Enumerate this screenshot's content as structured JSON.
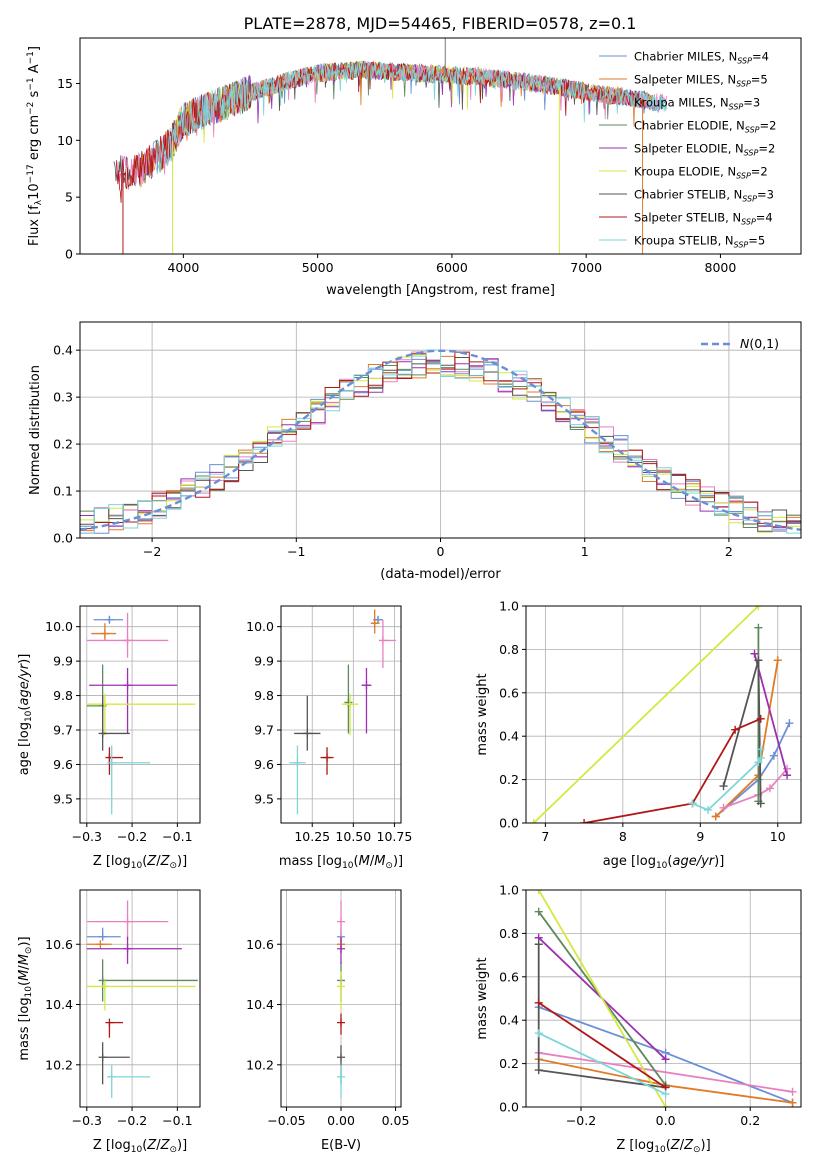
{
  "title": "PLATE=2878, MJD=54465, FIBERID=0578, z=0.1",
  "series_names": [
    "Chabrier MILES, N_SSP=4",
    "Salpeter MILES, N_SSP=5",
    "Kroupa MILES, N_SSP=3",
    "Chabrier ELODIE, N_SSP=2",
    "Salpeter ELODIE, N_SSP=2",
    "Kroupa ELODIE, N_SSP=2",
    "Chabrier STELIB, N_SSP=3",
    "Salpeter STELIB, N_SSP=4",
    "Kroupa STELIB, N_SSP=5"
  ],
  "colors": [
    "#6a8fd8",
    "#e07b28",
    "#e880c0",
    "#5c8a5c",
    "#9b30b0",
    "#d4e842",
    "#555555",
    "#b01818",
    "#7dd6d8"
  ],
  "chart_data": [
    {
      "id": "spectrum",
      "type": "line",
      "xlabel": "wavelength [Angstrom, rest frame]",
      "ylabel": "Flux [f_λ 10^-17 erg cm^-2 s^-1 A^-1]",
      "xlim": [
        3230,
        8600
      ],
      "ylim": [
        0,
        19
      ],
      "xticks": [
        4000,
        5000,
        6000,
        7000,
        8000
      ],
      "yticks": [
        0,
        5,
        10,
        15
      ],
      "legend": [
        {
          "base": "Chabrier MILES, N",
          "sub": "SSP",
          "tail": "=4"
        },
        {
          "base": "Salpeter MILES, N",
          "sub": "SSP",
          "tail": "=5"
        },
        {
          "base": "Kroupa MILES, N",
          "sub": "SSP",
          "tail": "=3"
        },
        {
          "base": "Chabrier ELODIE, N",
          "sub": "SSP",
          "tail": "=2"
        },
        {
          "base": "Salpeter ELODIE, N",
          "sub": "SSP",
          "tail": "=2"
        },
        {
          "base": "Kroupa ELODIE, N",
          "sub": "SSP",
          "tail": "=2"
        },
        {
          "base": "Chabrier STELIB, N",
          "sub": "SSP",
          "tail": "=3"
        },
        {
          "base": "Salpeter STELIB, N",
          "sub": "SSP",
          "tail": "=4"
        },
        {
          "base": "Kroupa STELIB, N",
          "sub": "SSP",
          "tail": "=5"
        }
      ],
      "legend_loc": "right",
      "continuum_x": [
        3500,
        3700,
        3900,
        4000,
        4200,
        4500,
        4800,
        5000,
        5300,
        5600,
        5900,
        6200,
        6500,
        6800,
        7000,
        7200,
        7400,
        7600
      ],
      "continuum_y": [
        7.0,
        7.5,
        9.5,
        11.8,
        12.8,
        14.2,
        15.3,
        15.9,
        16.2,
        16.0,
        15.8,
        15.6,
        15.2,
        14.7,
        14.3,
        13.9,
        13.6,
        13.2
      ]
    },
    {
      "id": "residuals",
      "type": "bar",
      "xlabel": "(data-model)/error",
      "ylabel": "Normed distribution",
      "xlim": [
        -2.5,
        2.5
      ],
      "ylim": [
        0,
        0.46
      ],
      "xticks": [
        -2,
        -1,
        0,
        1,
        2
      ],
      "yticks": [
        0.0,
        0.1,
        0.2,
        0.3,
        0.4
      ],
      "legend_label": "N(0,1)",
      "legend_loc": "top-right",
      "grid": true
    },
    {
      "id": "age_vs_Z",
      "type": "scatter",
      "xlabel": "Z [log10(Z/Z⊙)]",
      "ylabel": "age [log10(age/yr)]",
      "xlim": [
        -0.315,
        -0.05
      ],
      "ylim": [
        9.43,
        10.06
      ],
      "xticks": [
        -0.3,
        -0.2,
        -0.1
      ],
      "yticks": [
        9.5,
        9.6,
        9.7,
        9.8,
        9.9,
        10.0
      ],
      "points": [
        {
          "x": -0.25,
          "y": 10.02,
          "xerr": [
            0.035,
            0.03
          ],
          "yerr": [
            0.01,
            0.01
          ]
        },
        {
          "x": -0.26,
          "y": 9.98,
          "xerr": [
            0.03,
            0.025
          ],
          "yerr": [
            0.02,
            0.03
          ]
        },
        {
          "x": -0.21,
          "y": 9.96,
          "xerr": [
            0.09,
            0.09
          ],
          "yerr": [
            0.05,
            0.08
          ]
        },
        {
          "x": -0.265,
          "y": 9.77,
          "xerr": [
            0.035,
            0.0
          ],
          "yerr": [
            0.09,
            0.12
          ]
        },
        {
          "x": -0.21,
          "y": 9.83,
          "xerr": [
            0.085,
            0.11
          ],
          "yerr": [
            0.14,
            0.05
          ]
        },
        {
          "x": -0.26,
          "y": 9.775,
          "xerr": [
            0.04,
            0.2
          ],
          "yerr": [
            0.09,
            0.03
          ]
        },
        {
          "x": -0.265,
          "y": 9.69,
          "xerr": [
            0.0,
            0.06
          ],
          "yerr": [
            0.05,
            0.11
          ]
        },
        {
          "x": -0.25,
          "y": 9.62,
          "xerr": [
            0.0,
            0.03
          ],
          "yerr": [
            0.05,
            0.03
          ]
        },
        {
          "x": -0.245,
          "y": 9.605,
          "xerr": [
            0.01,
            0.085
          ],
          "yerr": [
            0.15,
            0.05
          ]
        }
      ],
      "grid": true
    },
    {
      "id": "age_vs_mass",
      "type": "scatter",
      "xlabel": "mass [log10(M/M⊙)]",
      "ylabel": "",
      "xlim": [
        10.06,
        10.79
      ],
      "ylim": [
        9.43,
        10.06
      ],
      "xticks": [
        10.25,
        10.5,
        10.75
      ],
      "yticks": [
        9.5,
        9.6,
        9.7,
        9.8,
        9.9,
        10.0
      ],
      "points": [
        {
          "x": 10.65,
          "y": 10.02,
          "xerr": [
            0.03,
            0.03
          ],
          "yerr": [
            0.01,
            0.01
          ]
        },
        {
          "x": 10.63,
          "y": 10.01,
          "xerr": [
            0.02,
            0.03
          ],
          "yerr": [
            0.03,
            0.04
          ]
        },
        {
          "x": 10.68,
          "y": 9.96,
          "xerr": [
            0.0,
            0.08
          ],
          "yerr": [
            0.08,
            0.06
          ]
        },
        {
          "x": 10.47,
          "y": 9.78,
          "xerr": [
            0.0,
            0.0
          ],
          "yerr": [
            0.09,
            0.11
          ]
        },
        {
          "x": 10.58,
          "y": 9.83,
          "xerr": [
            0.03,
            0.03
          ],
          "yerr": [
            0.14,
            0.05
          ]
        },
        {
          "x": 10.48,
          "y": 9.775,
          "xerr": [
            0.05,
            0.05
          ],
          "yerr": [
            0.09,
            0.03
          ]
        },
        {
          "x": 10.22,
          "y": 9.69,
          "xerr": [
            0.08,
            0.08
          ],
          "yerr": [
            0.05,
            0.11
          ]
        },
        {
          "x": 10.34,
          "y": 9.62,
          "xerr": [
            0.04,
            0.04
          ],
          "yerr": [
            0.05,
            0.03
          ]
        },
        {
          "x": 10.16,
          "y": 9.605,
          "xerr": [
            0.05,
            0.05
          ],
          "yerr": [
            0.15,
            0.05
          ]
        }
      ],
      "grid": true
    },
    {
      "id": "weight_vs_age",
      "type": "line",
      "xlabel": "age [log10(age/yr)]",
      "ylabel": "mass weight",
      "xlim": [
        6.75,
        10.3
      ],
      "ylim": [
        0,
        1.0
      ],
      "xticks": [
        7,
        8,
        9,
        10
      ],
      "yticks": [
        0.0,
        0.2,
        0.4,
        0.6,
        0.8,
        1.0
      ],
      "series": [
        {
          "x": [
            9.2,
            9.75,
            9.95,
            10.15
          ],
          "y": [
            0.03,
            0.2,
            0.31,
            0.46
          ]
        },
        {
          "x": [
            9.2,
            9.75,
            10.0
          ],
          "y": [
            0.03,
            0.22,
            0.75
          ]
        },
        {
          "x": [
            9.3,
            9.75,
            9.9,
            10.12
          ],
          "y": [
            0.07,
            0.13,
            0.16,
            0.25
          ]
        },
        {
          "x": [
            9.75,
            9.75
          ],
          "y": [
            0.1,
            0.9
          ]
        },
        {
          "x": [
            9.7,
            10.12
          ],
          "y": [
            0.78,
            0.22
          ]
        },
        {
          "x": [
            6.85,
            9.75
          ],
          "y": [
            0.0,
            1.0
          ]
        },
        {
          "x": [
            9.3,
            9.75,
            9.78
          ],
          "y": [
            0.17,
            0.75,
            0.09
          ]
        },
        {
          "x": [
            7.5,
            8.9,
            9.45,
            9.78
          ],
          "y": [
            0.0,
            0.09,
            0.43,
            0.48
          ]
        },
        {
          "x": [
            8.9,
            9.1,
            9.75,
            9.78,
            9.78
          ],
          "y": [
            0.09,
            0.06,
            0.28,
            0.3,
            0.34
          ]
        }
      ],
      "grid": true
    },
    {
      "id": "mass_vs_Z",
      "type": "scatter",
      "xlabel": "Z [log10(Z/Z⊙)]",
      "ylabel": "mass [log10(M/M⊙)]",
      "xlim": [
        -0.315,
        -0.05
      ],
      "ylim": [
        10.06,
        10.78
      ],
      "xticks": [
        -0.3,
        -0.2,
        -0.1
      ],
      "yticks": [
        10.2,
        10.4,
        10.6
      ],
      "points": [
        {
          "x": -0.265,
          "y": 10.625,
          "xerr": [
            0.035,
            0.04
          ],
          "yerr": [
            0.01,
            0.03
          ]
        },
        {
          "x": -0.27,
          "y": 10.6,
          "xerr": [
            0.03,
            0.025
          ],
          "yerr": [
            0.0,
            0.0
          ]
        },
        {
          "x": -0.21,
          "y": 10.675,
          "xerr": [
            0.09,
            0.09
          ],
          "yerr": [
            0.06,
            0.07
          ]
        },
        {
          "x": -0.265,
          "y": 10.48,
          "xerr": [
            0.0,
            0.21
          ],
          "yerr": [
            0.07,
            0.07
          ]
        },
        {
          "x": -0.21,
          "y": 10.585,
          "xerr": [
            0.09,
            0.12
          ],
          "yerr": [
            0.05,
            0.04
          ]
        },
        {
          "x": -0.26,
          "y": 10.46,
          "xerr": [
            0.04,
            0.2
          ],
          "yerr": [
            0.08,
            0.02
          ]
        },
        {
          "x": -0.265,
          "y": 10.225,
          "xerr": [
            0.0,
            0.06
          ],
          "yerr": [
            0.09,
            0.05
          ]
        },
        {
          "x": -0.25,
          "y": 10.34,
          "xerr": [
            0.0,
            0.03
          ],
          "yerr": [
            0.05,
            0.0
          ]
        },
        {
          "x": -0.245,
          "y": 10.16,
          "xerr": [
            0.01,
            0.085
          ],
          "yerr": [
            0.07,
            0.04
          ]
        }
      ],
      "grid": true
    },
    {
      "id": "mass_vs_ebv",
      "type": "scatter",
      "xlabel": "E(B-V)",
      "ylabel": "",
      "xlim": [
        -0.055,
        0.055
      ],
      "ylim": [
        10.06,
        10.78
      ],
      "xticks": [
        -0.05,
        0.0,
        0.05
      ],
      "yticks": [
        10.2,
        10.4,
        10.6
      ],
      "points": [
        {
          "x": 0.0,
          "y": 10.625,
          "yerr": [
            0.02,
            0.03
          ]
        },
        {
          "x": 0.0,
          "y": 10.6,
          "yerr": [
            0.03,
            0.02
          ]
        },
        {
          "x": 0.0,
          "y": 10.675,
          "yerr": [
            0.06,
            0.07
          ]
        },
        {
          "x": 0.0,
          "y": 10.48,
          "yerr": [
            0.07,
            0.06
          ]
        },
        {
          "x": 0.0,
          "y": 10.585,
          "yerr": [
            0.05,
            0.04
          ]
        },
        {
          "x": 0.0,
          "y": 10.46,
          "yerr": [
            0.08,
            0.05
          ]
        },
        {
          "x": 0.0,
          "y": 10.225,
          "yerr": [
            0.09,
            0.04
          ]
        },
        {
          "x": 0.0,
          "y": 10.34,
          "yerr": [
            0.04,
            0.03
          ]
        },
        {
          "x": 0.0,
          "y": 10.16,
          "yerr": [
            0.07,
            0.04
          ]
        }
      ],
      "grid": true
    },
    {
      "id": "weight_vs_Z",
      "type": "line",
      "xlabel": "Z [log10(Z/Z⊙)]",
      "ylabel": "mass weight",
      "xlim": [
        -0.33,
        0.32
      ],
      "ylim": [
        0,
        1.0
      ],
      "xticks": [
        -0.2,
        0.0,
        0.2
      ],
      "yticks": [
        0.0,
        0.2,
        0.4,
        0.6,
        0.8,
        1.0
      ],
      "series": [
        {
          "x": [
            -0.3,
            0.0,
            0.3
          ],
          "y": [
            0.46,
            0.25,
            0.02
          ]
        },
        {
          "x": [
            -0.3,
            0.0,
            0.3
          ],
          "y": [
            0.22,
            0.1,
            0.02
          ]
        },
        {
          "x": [
            -0.3,
            0.3
          ],
          "y": [
            0.25,
            0.07
          ]
        },
        {
          "x": [
            -0.3,
            0.0
          ],
          "y": [
            0.9,
            0.1
          ]
        },
        {
          "x": [
            -0.3,
            0.0
          ],
          "y": [
            0.78,
            0.22
          ]
        },
        {
          "x": [
            -0.3,
            0.0
          ],
          "y": [
            1.0,
            0.0
          ]
        },
        {
          "x": [
            -0.3,
            -0.3,
            0.0
          ],
          "y": [
            0.75,
            0.17,
            0.09
          ]
        },
        {
          "x": [
            -0.3,
            0.0
          ],
          "y": [
            0.48,
            0.09
          ]
        },
        {
          "x": [
            -0.3,
            0.0
          ],
          "y": [
            0.34,
            0.06
          ]
        }
      ],
      "grid": true
    }
  ]
}
